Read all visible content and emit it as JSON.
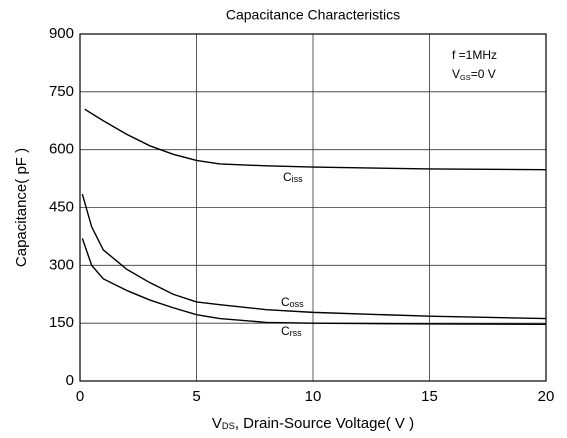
{
  "chart_data": {
    "type": "line",
    "title": "Capacitance Characteristics",
    "x_label_parts": [
      "V",
      "DS",
      ", Drain-Source Voltage( V )"
    ],
    "y_label": "Capacitance( pF )",
    "annotations": [
      [
        "f =1MHz"
      ],
      [
        "V",
        "GS",
        "=0 V"
      ]
    ],
    "xlim": [
      0,
      20
    ],
    "xticks": [
      0,
      5,
      10,
      15,
      20
    ],
    "ylim": [
      0,
      900
    ],
    "yticks": [
      0,
      150,
      300,
      450,
      600,
      750,
      900
    ],
    "grid": true,
    "series": [
      {
        "name": "Ciss",
        "color": "#000000",
        "x": [
          0.2,
          1,
          2,
          3,
          4,
          5,
          6,
          8,
          10,
          15,
          20
        ],
        "values": [
          705,
          675,
          640,
          610,
          588,
          572,
          563,
          558,
          555,
          550,
          548
        ]
      },
      {
        "name": "Coss",
        "color": "#000000",
        "x": [
          0.1,
          0.5,
          1,
          2,
          3,
          4,
          5,
          6,
          8,
          10,
          15,
          20
        ],
        "values": [
          485,
          400,
          340,
          290,
          255,
          225,
          205,
          198,
          185,
          178,
          168,
          162
        ]
      },
      {
        "name": "Crss",
        "color": "#000000",
        "x": [
          0.1,
          0.5,
          1,
          2,
          3,
          4,
          5,
          6,
          8,
          10,
          15,
          20
        ],
        "values": [
          370,
          300,
          265,
          235,
          210,
          190,
          172,
          162,
          152,
          150,
          148,
          147
        ]
      }
    ]
  }
}
